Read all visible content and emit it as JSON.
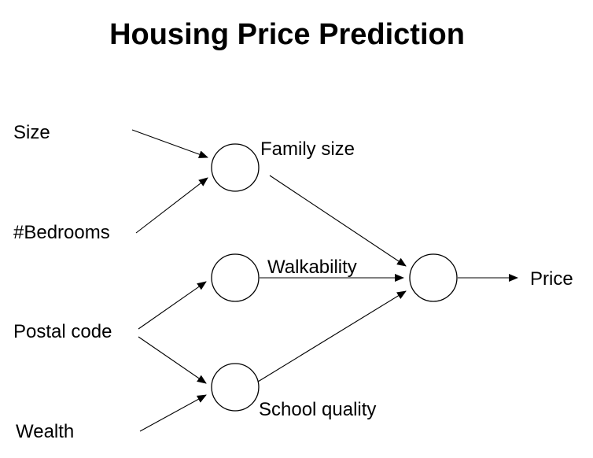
{
  "title": "Housing Price Prediction",
  "inputs": {
    "size": "Size",
    "bedrooms": "#Bedrooms",
    "postal_code": "Postal code",
    "wealth": "Wealth"
  },
  "hidden": {
    "family_size": "Family size",
    "walkability": "Walkability",
    "school_quality": "School quality"
  },
  "output": {
    "price": "Price"
  }
}
